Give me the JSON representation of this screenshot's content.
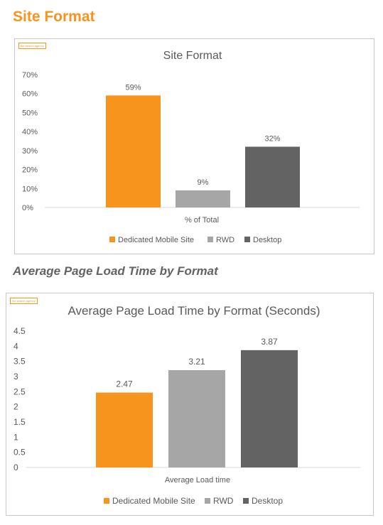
{
  "page": {
    "section1_title": "Site Format",
    "section2_title": "Average Page Load Time by Format",
    "badge_text": "the search agency"
  },
  "colors": {
    "accent": "#f7941d",
    "rwd": "#a6a6a6",
    "desktop": "#636363",
    "axis_text": "#595959",
    "grid": "#d9d9d9"
  },
  "chart_data": [
    {
      "type": "bar",
      "title": "Site Format",
      "categories": [
        "% of Total"
      ],
      "series": [
        {
          "name": "Dedicated Mobile Site",
          "values": [
            59
          ],
          "label": "59%"
        },
        {
          "name": "RWD",
          "values": [
            9
          ],
          "label": "9%"
        },
        {
          "name": "Desktop",
          "values": [
            32
          ],
          "label": "32%"
        }
      ],
      "ylim": [
        0,
        70
      ],
      "yticks": [
        0,
        10,
        20,
        30,
        40,
        50,
        60,
        70
      ],
      "ytick_labels": [
        "0%",
        "10%",
        "20%",
        "30%",
        "40%",
        "50%",
        "60%",
        "70%"
      ],
      "xlabel": "% of Total",
      "ylabel": "",
      "grid": false,
      "legend": "bottom"
    },
    {
      "type": "bar",
      "title": "Average Page Load Time by Format (Seconds)",
      "categories": [
        "Average Load time"
      ],
      "series": [
        {
          "name": "Dedicated Mobile Site",
          "values": [
            2.47
          ],
          "label": "2.47"
        },
        {
          "name": "RWD",
          "values": [
            3.21
          ],
          "label": "3.21"
        },
        {
          "name": "Desktop",
          "values": [
            3.87
          ],
          "label": "3.87"
        }
      ],
      "ylim": [
        0,
        4.5
      ],
      "yticks": [
        0,
        0.5,
        1,
        1.5,
        2,
        2.5,
        3,
        3.5,
        4,
        4.5
      ],
      "ytick_labels": [
        "0",
        "0.5",
        "1",
        "1.5",
        "2",
        "2.5",
        "3",
        "3.5",
        "4",
        "4.5"
      ],
      "xlabel": "Average Load time",
      "ylabel": "",
      "grid": false,
      "legend": "bottom"
    }
  ]
}
